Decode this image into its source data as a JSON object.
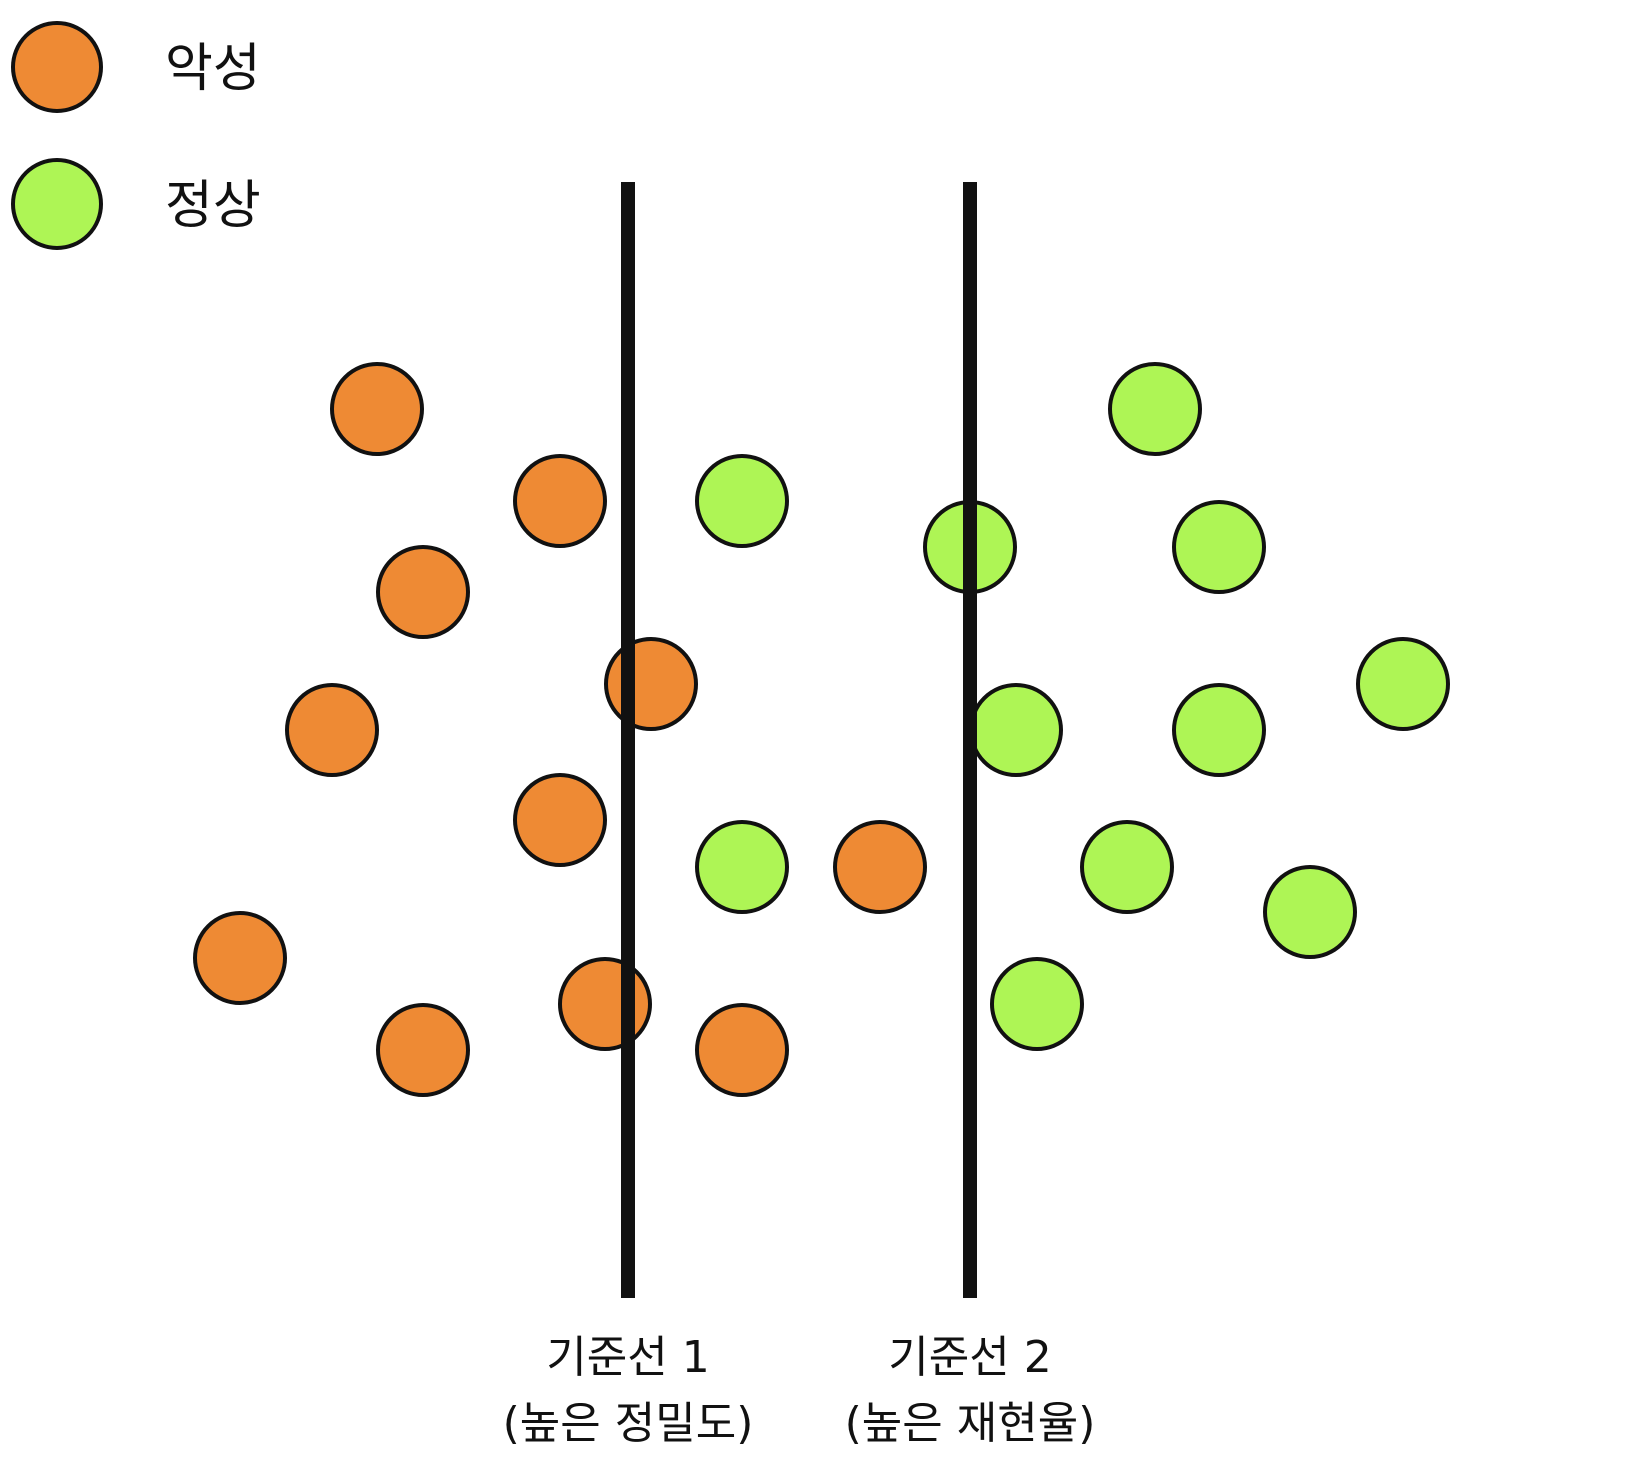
{
  "legend": {
    "malignant": {
      "label": "악성",
      "color": "#ee8a34"
    },
    "normal": {
      "label": "정상",
      "color": "#aef555"
    }
  },
  "thresholds": [
    {
      "title": "기준선 1",
      "subtitle": "(높은 정밀도)"
    },
    {
      "title": "기준선 2",
      "subtitle": "(높은 재현율)"
    }
  ],
  "points": [
    {
      "class": "malignant"
    },
    {
      "class": "malignant"
    },
    {
      "class": "malignant"
    },
    {
      "class": "malignant"
    },
    {
      "class": "malignant"
    },
    {
      "class": "malignant"
    },
    {
      "class": "malignant"
    },
    {
      "class": "malignant"
    },
    {
      "class": "malignant"
    },
    {
      "class": "malignant"
    },
    {
      "class": "normal"
    },
    {
      "class": "normal"
    },
    {
      "class": "normal"
    },
    {
      "class": "normal"
    },
    {
      "class": "normal"
    },
    {
      "class": "malignant"
    },
    {
      "class": "normal"
    },
    {
      "class": "normal"
    },
    {
      "class": "normal"
    },
    {
      "class": "normal"
    },
    {
      "class": "normal"
    },
    {
      "class": "normal"
    }
  ]
}
